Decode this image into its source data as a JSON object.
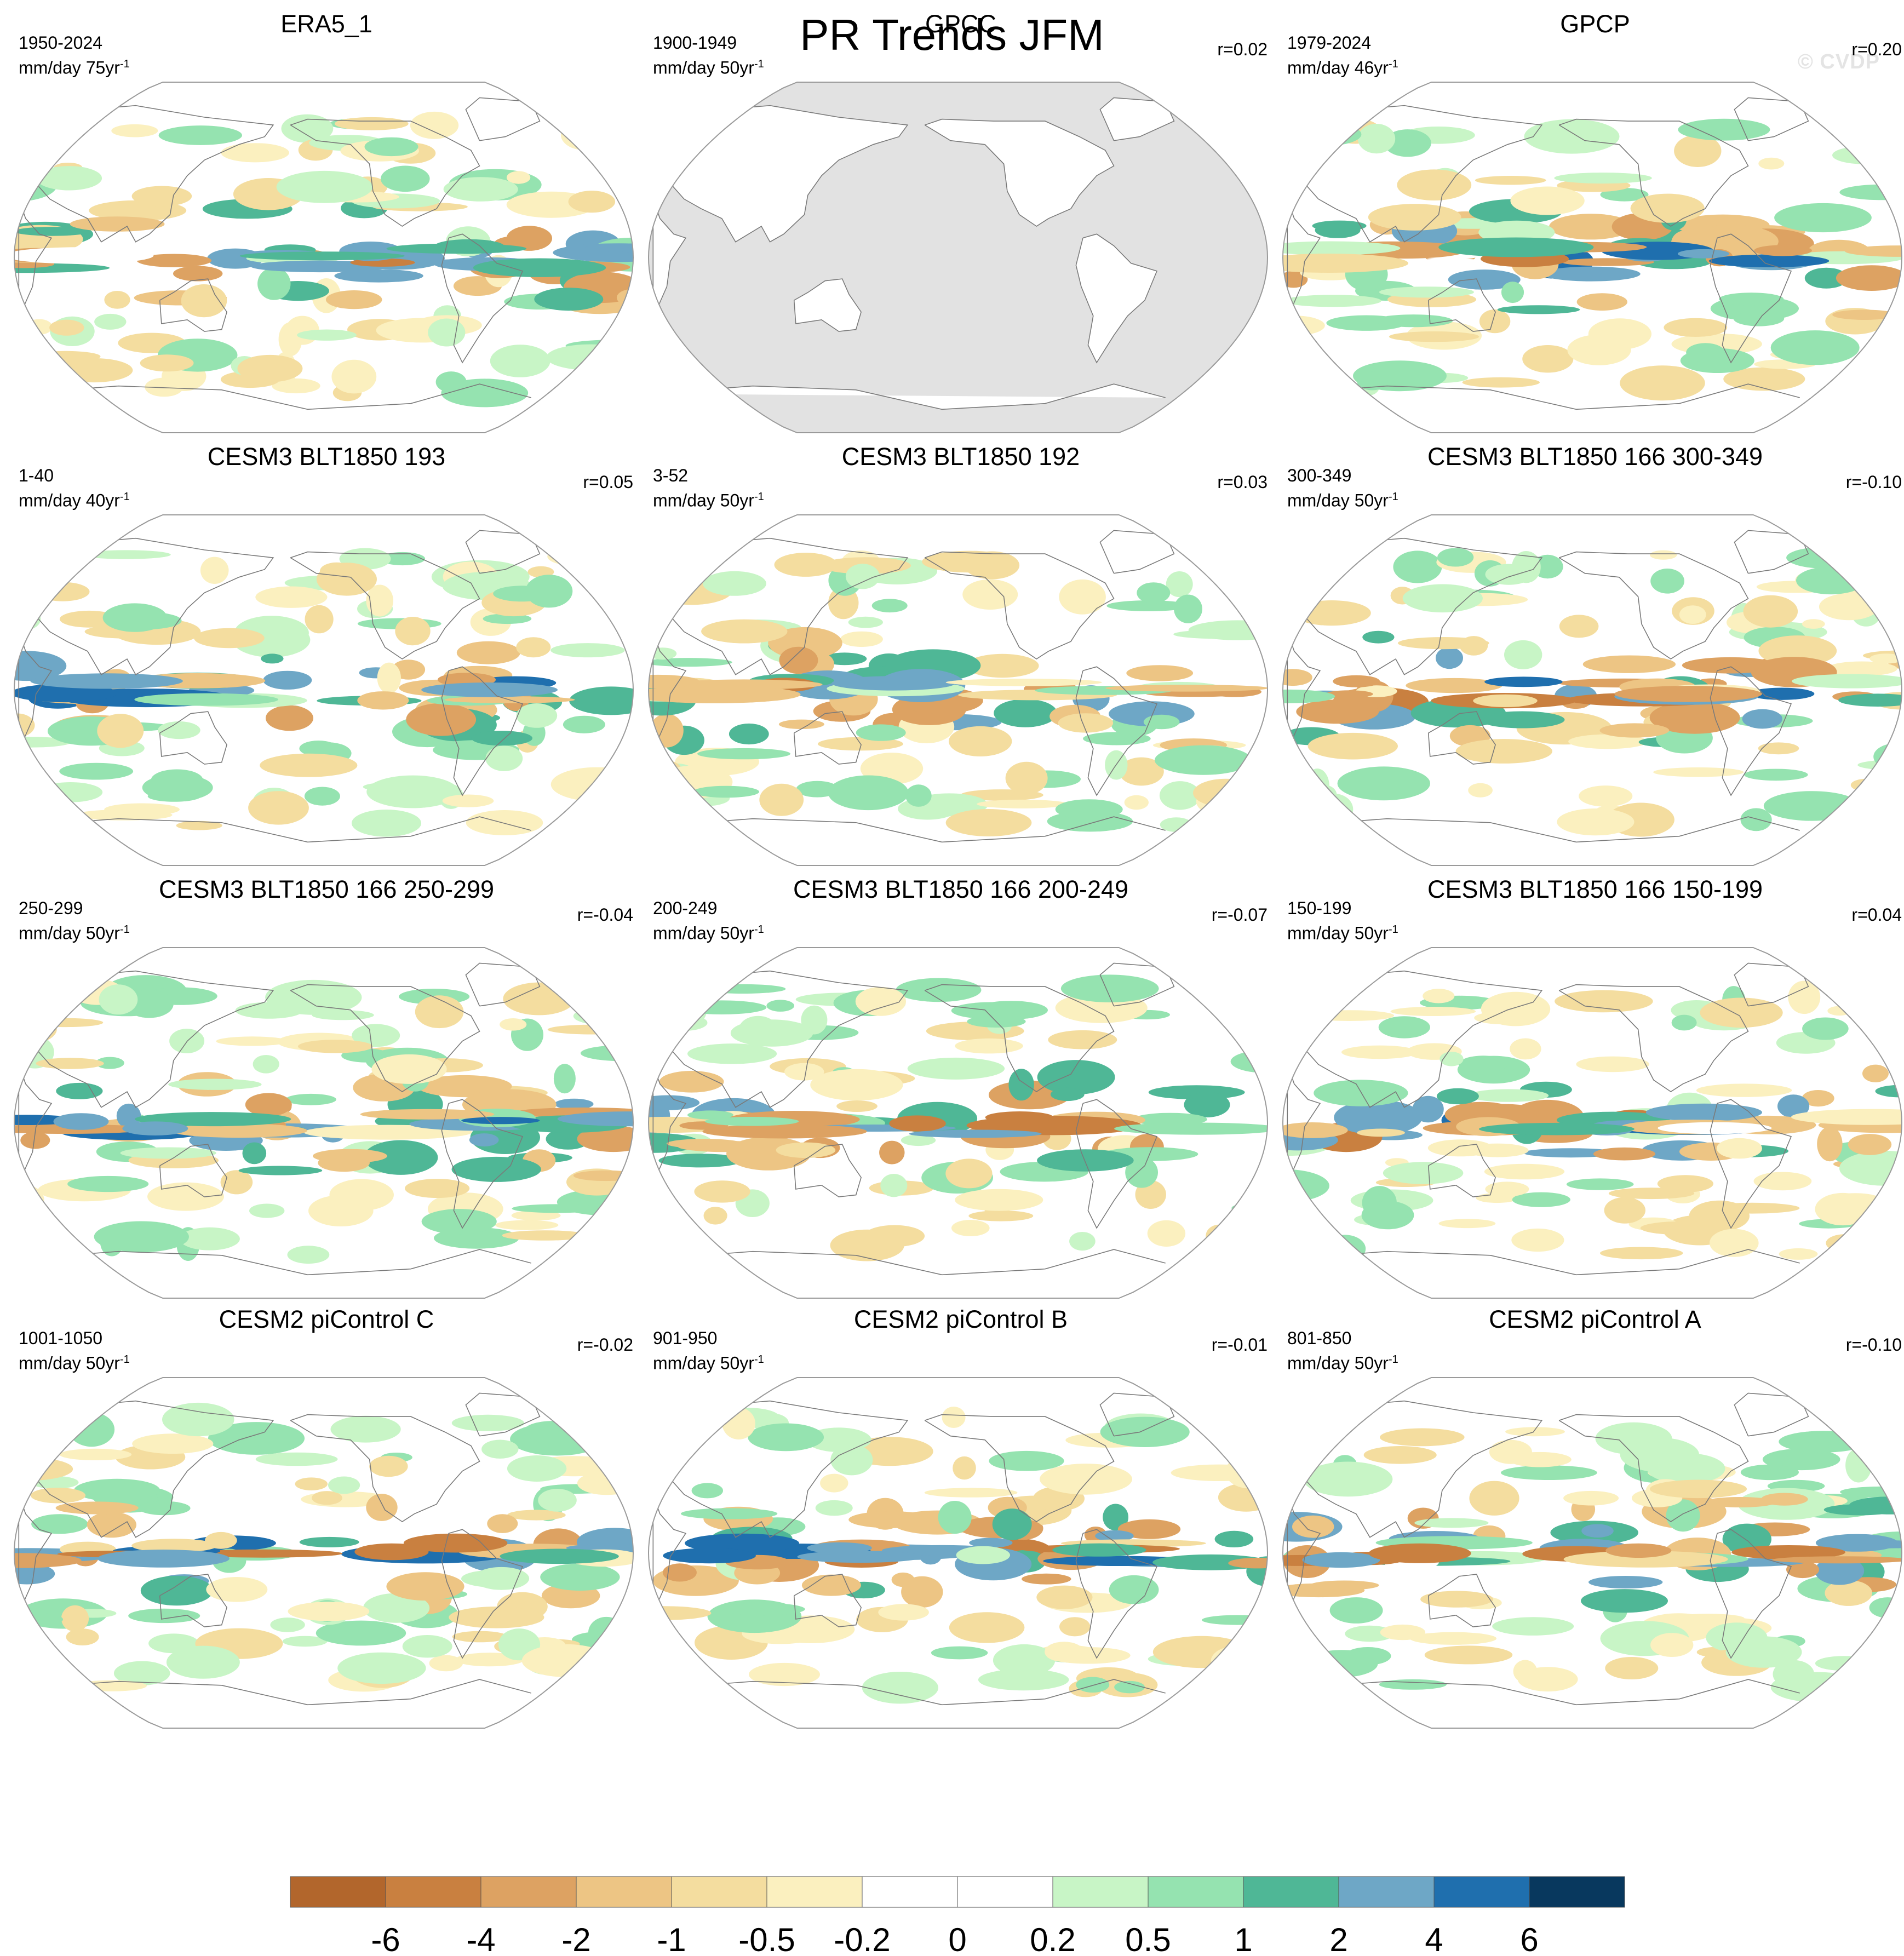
{
  "figure": {
    "title": "PR Trends JFM",
    "watermark": "© CVDP"
  },
  "chart_data": {
    "type": "heatmap",
    "title": "PR Trends JFM",
    "projection": "global map (Robinson-like), Pacific-centered",
    "variable": "precipitation trend",
    "legend_placement": "bottom",
    "panels": [
      {
        "title": "ERA5_1",
        "period": "1950-2024",
        "units": "mm/day 75yr",
        "unit_exponent": "-1",
        "r": "",
        "land_masked": false
      },
      {
        "title": "GPCC",
        "period": "1900-1949",
        "units": "mm/day 50yr",
        "unit_exponent": "-1",
        "r": "r=0.02",
        "land_masked": true
      },
      {
        "title": "GPCP",
        "period": "1979-2024",
        "units": "mm/day 46yr",
        "unit_exponent": "-1",
        "r": "r=0.20",
        "land_masked": false
      },
      {
        "title": "CESM3 BLT1850 193",
        "period": "1-40",
        "units": "mm/day 40yr",
        "unit_exponent": "-1",
        "r": "r=0.05",
        "land_masked": false
      },
      {
        "title": "CESM3 BLT1850 192",
        "period": "3-52",
        "units": "mm/day 50yr",
        "unit_exponent": "-1",
        "r": "r=0.03",
        "land_masked": false
      },
      {
        "title": "CESM3 BLT1850 166 300-349",
        "period": "300-349",
        "units": "mm/day 50yr",
        "unit_exponent": "-1",
        "r": "r=-0.10",
        "land_masked": false
      },
      {
        "title": "CESM3 BLT1850 166 250-299",
        "period": "250-299",
        "units": "mm/day 50yr",
        "unit_exponent": "-1",
        "r": "r=-0.04",
        "land_masked": false
      },
      {
        "title": "CESM3 BLT1850 166 200-249",
        "period": "200-249",
        "units": "mm/day 50yr",
        "unit_exponent": "-1",
        "r": "r=-0.07",
        "land_masked": false
      },
      {
        "title": "CESM3 BLT1850 166 150-199",
        "period": "150-199",
        "units": "mm/day 50yr",
        "unit_exponent": "-1",
        "r": "r=0.04",
        "land_masked": false
      },
      {
        "title": "CESM2 piControl C",
        "period": "1001-1050",
        "units": "mm/day 50yr",
        "unit_exponent": "-1",
        "r": "r=-0.02",
        "land_masked": false
      },
      {
        "title": "CESM2 piControl B",
        "period": "901-950",
        "units": "mm/day 50yr",
        "unit_exponent": "-1",
        "r": "r=-0.01",
        "land_masked": false
      },
      {
        "title": "CESM2 piControl A",
        "period": "801-850",
        "units": "mm/day 50yr",
        "unit_exponent": "-1",
        "r": "r=-0.10",
        "land_masked": false
      }
    ],
    "colorbar": {
      "levels": [
        "-6",
        "-4",
        "-2",
        "-1",
        "-0.5",
        "-0.2",
        "0",
        "0.2",
        "0.5",
        "1",
        "2",
        "4",
        "6"
      ],
      "colors": [
        "#b2662c",
        "#c98040",
        "#dda262",
        "#edc584",
        "#f4dd9f",
        "#fbf0bf",
        "#ffffff",
        "#ffffff",
        "#c8f5c6",
        "#95e3b0",
        "#4fb796",
        "#6ea7c6",
        "#1f6fae",
        "#08385e"
      ]
    }
  },
  "style": {
    "land_mask_color": "#e2e2e2",
    "coastline_color": "#7a7a7a",
    "outline_color": "#9a9a9a"
  }
}
